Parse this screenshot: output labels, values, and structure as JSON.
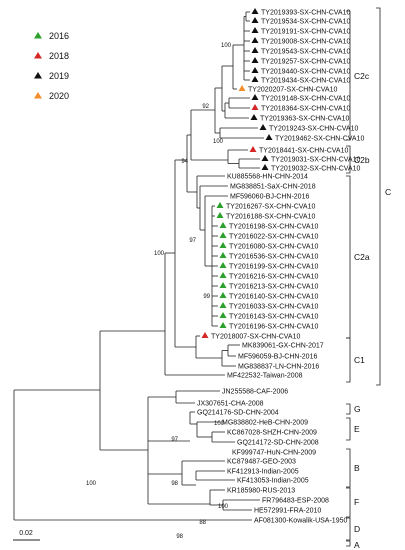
{
  "legend": {
    "items": [
      {
        "label": "2016",
        "color": "#2ca02c"
      },
      {
        "label": "2018",
        "color": "#d62728"
      },
      {
        "label": "2019",
        "color": "#111111"
      },
      {
        "label": "2020",
        "color": "#f28e2b"
      }
    ]
  },
  "taxa": [
    {
      "label": "TY2019393-SX-CHN-CVA10",
      "year": "2019"
    },
    {
      "label": "TY2019534-SX-CHN-CVA10",
      "year": "2019"
    },
    {
      "label": "TY2019191-SX-CHN-CVA10",
      "year": "2019"
    },
    {
      "label": "TY2019008-SX-CHN-CVA10",
      "year": "2019"
    },
    {
      "label": "TY2019543-SX-CHN-CVA10",
      "year": "2019"
    },
    {
      "label": "TY2019257-SX-CHN-CVA10",
      "year": "2019"
    },
    {
      "label": "TY2019440-SX-CHN-CVA10",
      "year": "2019"
    },
    {
      "label": "TY2019434-SX-CHN-CVA10",
      "year": "2019"
    },
    {
      "label": "TY2020207-SX-CHN-CVA10",
      "year": "2020"
    },
    {
      "label": "TY2019148-SX-CHN-CVA10",
      "year": "2019"
    },
    {
      "label": "TY2018364-SX-CHN-CVA10",
      "year": "2018"
    },
    {
      "label": "TY2019363-SX-CHN-CVA10",
      "year": "2019"
    },
    {
      "label": "TY2019243-SX-CHN-CVA10",
      "year": "2019"
    },
    {
      "label": "TY2019462-SX-CHN-CVA10",
      "year": "2019"
    },
    {
      "label": "TY2018441-SX-CHN-CVA10",
      "year": "2018"
    },
    {
      "label": "TY2019031-SX-CHN-CVA10",
      "year": "2019"
    },
    {
      "label": "TY2019032-SX-CHN-CVA10",
      "year": "2019"
    },
    {
      "label": "KU885568-HN-CHN-2014",
      "year": ""
    },
    {
      "label": "MG838851-SaX-CHN-2018",
      "year": ""
    },
    {
      "label": "MF596060-BJ-CHN-2016",
      "year": ""
    },
    {
      "label": "TY2016267-SX-CHN-CVA10",
      "year": "2016"
    },
    {
      "label": "TY2016188-SX-CHN-CVA10",
      "year": "2016"
    },
    {
      "label": "TY2016198-SX-CHN-CVA10",
      "year": "2016"
    },
    {
      "label": "TY2016022-SX-CHN-CVA10",
      "year": "2016"
    },
    {
      "label": "TY2016080-SX-CHN-CVA10",
      "year": "2016"
    },
    {
      "label": "TY2016536-SX-CHN-CVA10",
      "year": "2016"
    },
    {
      "label": "TY2016199-SX-CHN-CVA10",
      "year": "2016"
    },
    {
      "label": "TY2016216-SX-CHN-CVA10",
      "year": "2016"
    },
    {
      "label": "TY2016213-SX-CHN-CVA10",
      "year": "2016"
    },
    {
      "label": "TY2016140-SX-CHN-CVA10",
      "year": "2016"
    },
    {
      "label": "TY2016033-SX-CHN-CVA10",
      "year": "2016"
    },
    {
      "label": "TY2016143-SX-CHN-CVA10",
      "year": "2016"
    },
    {
      "label": "TY2016196-SX-CHN-CVA10",
      "year": "2016"
    },
    {
      "label": "TY2018007-SX-CHN-CVA10",
      "year": "2018"
    },
    {
      "label": "MK839061-GX-CHN-2017",
      "year": ""
    },
    {
      "label": "MF596059-BJ-CHN-2016",
      "year": ""
    },
    {
      "label": "MG838837-LN-CHN-2016",
      "year": ""
    },
    {
      "label": "MF422532-Taiwan-2008",
      "year": ""
    },
    {
      "label": "JN255588-CAF-2006",
      "year": ""
    },
    {
      "label": "JX307651-CHA-2008",
      "year": ""
    },
    {
      "label": "GQ214176-SD-CHN-2004",
      "year": ""
    },
    {
      "label": "MG838802-HeB-CHN-2009",
      "year": ""
    },
    {
      "label": "KC867028-SHZH-CHN-2009",
      "year": ""
    },
    {
      "label": "GQ214172-SD-CHN-2008",
      "year": ""
    },
    {
      "label": "KF999747-HuN-CHN-2009",
      "year": ""
    },
    {
      "label": "KC879487-GEO-2003",
      "year": ""
    },
    {
      "label": "KF412913-Indian-2005",
      "year": ""
    },
    {
      "label": "KF413053-Indian-2005",
      "year": ""
    },
    {
      "label": "KR185980-RUS-2013",
      "year": ""
    },
    {
      "label": "FR796483-ESP-2008",
      "year": ""
    },
    {
      "label": "HE572991-FRA-2010",
      "year": ""
    },
    {
      "label": "AF081300-Kowalik-USA-1950",
      "year": ""
    }
  ],
  "bootstrap": [
    "100",
    "92",
    "100",
    "94",
    "97",
    "99",
    "100",
    "100",
    "97",
    "98",
    "100",
    "98",
    "100",
    "88"
  ],
  "clades": [
    "C2c",
    "C2b",
    "C2a",
    "C1",
    "C",
    "G",
    "E",
    "B",
    "F",
    "D",
    "A"
  ],
  "scale": {
    "label": "0.02"
  }
}
